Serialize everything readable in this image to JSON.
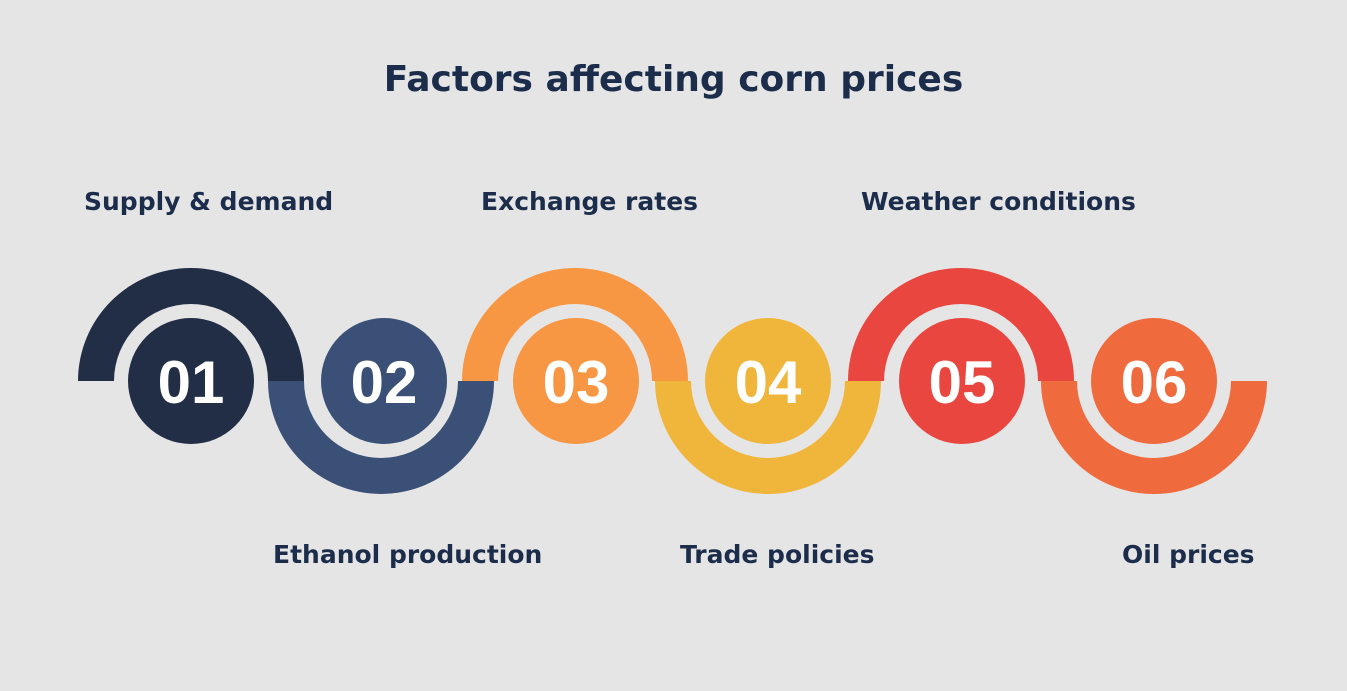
{
  "title": "Factors affecting corn prices",
  "factors": [
    {
      "number": "01",
      "label": "Supply & demand",
      "color": "#222e45"
    },
    {
      "number": "02",
      "label": "Ethanol production",
      "color": "#3a5076"
    },
    {
      "number": "03",
      "label": "Exchange rates",
      "color": "#f79744"
    },
    {
      "number": "04",
      "label": "Trade policies",
      "color": "#f0b53b"
    },
    {
      "number": "05",
      "label": "Weather conditions",
      "color": "#e8463e"
    },
    {
      "number": "06",
      "label": "Oil prices",
      "color": "#ef6a3d"
    }
  ]
}
